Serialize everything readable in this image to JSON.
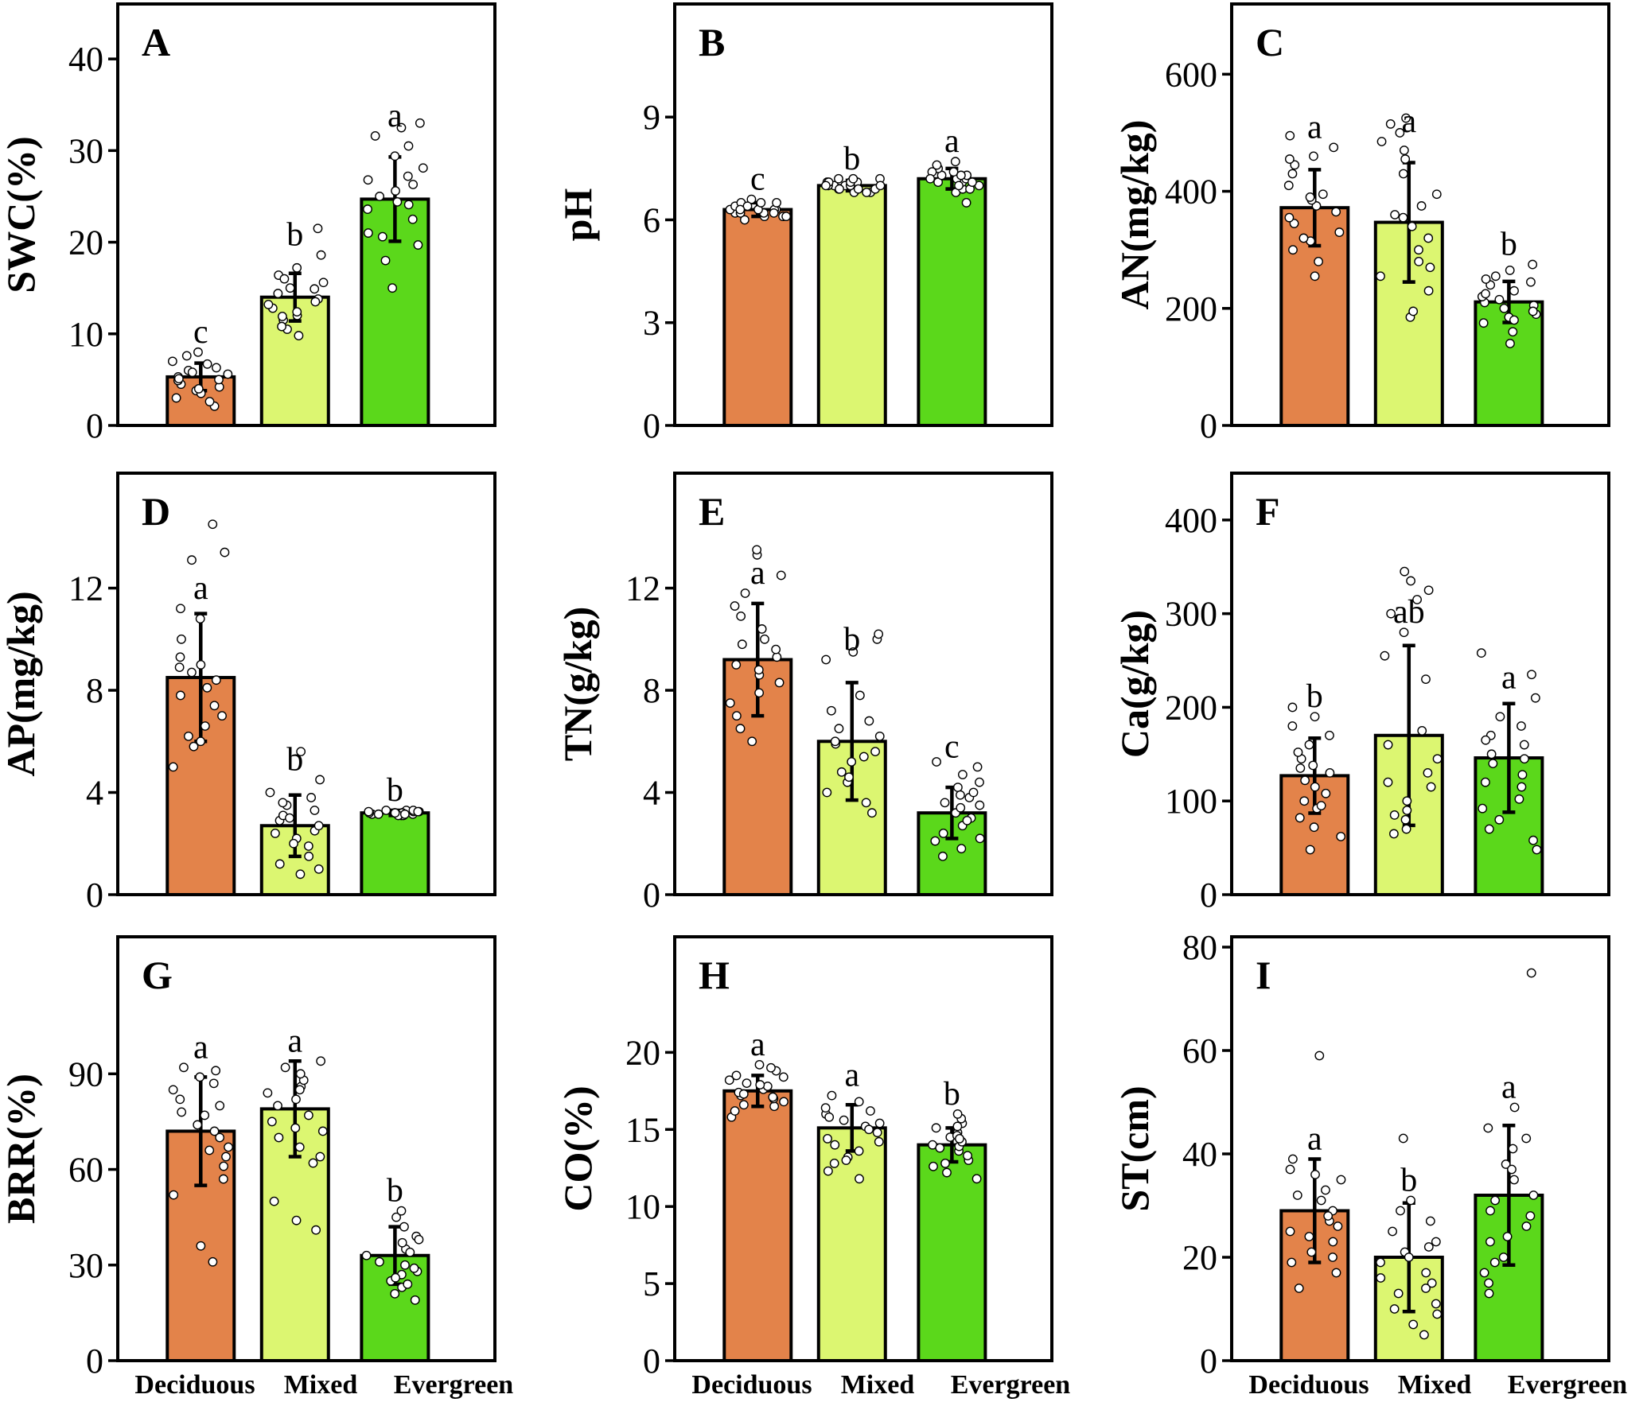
{
  "categories": [
    "Deciduous",
    "Mixed",
    "Evergreen"
  ],
  "colors": {
    "Deciduous": "#e3834a",
    "Mixed": "#dcf671",
    "Evergreen": "#5bd81b",
    "axis": "#000000",
    "point": "#ffffff"
  },
  "chart_data": [
    {
      "id": "A",
      "type": "bar",
      "ylabel": "SWC(%)",
      "ylim": [
        0,
        46
      ],
      "yticks": [
        0,
        10,
        20,
        30,
        40
      ],
      "values": [
        5.3,
        14,
        24.7
      ],
      "errors": [
        1.5,
        2.6,
        4.6
      ],
      "letters": [
        "c",
        "b",
        "a"
      ],
      "points": [
        [
          2.1,
          3.0,
          3.8,
          4.2,
          4.5,
          5.0,
          5.3,
          5.6,
          6.0,
          6.3,
          7.0,
          7.6,
          2.6,
          3.5,
          4.9,
          5.8,
          6.7,
          8.0,
          4.0,
          5.1
        ],
        [
          9.8,
          10.5,
          11.5,
          12.0,
          12.8,
          13.2,
          13.8,
          14.4,
          15.0,
          15.6,
          16.4,
          17.2,
          18.6,
          21.5,
          10.8,
          12.4,
          14.9,
          16.0,
          13.5,
          11.9
        ],
        [
          15.0,
          18.0,
          19.7,
          21.0,
          22.5,
          23.6,
          24.4,
          25.0,
          25.6,
          26.3,
          27.2,
          28.1,
          29.4,
          30.5,
          31.6,
          32.5,
          33.0,
          20.6,
          24.1,
          26.8
        ]
      ]
    },
    {
      "id": "B",
      "type": "bar",
      "ylabel": "pH",
      "ylim": [
        0,
        12.3
      ],
      "yticks": [
        0,
        3,
        6,
        9
      ],
      "values": [
        6.3,
        7.0,
        7.2
      ],
      "errors": [
        0.2,
        0.15,
        0.3
      ],
      "letters": [
        "c",
        "b",
        "a"
      ],
      "points": [
        [
          6.0,
          6.1,
          6.1,
          6.2,
          6.2,
          6.3,
          6.3,
          6.3,
          6.4,
          6.4,
          6.5,
          6.5,
          6.6,
          6.2,
          6.3,
          6.4,
          6.1,
          6.5,
          6.3,
          6.2
        ],
        [
          6.8,
          6.8,
          6.9,
          6.9,
          7.0,
          7.0,
          7.0,
          7.1,
          7.1,
          7.2,
          7.2,
          6.9,
          7.0,
          7.1,
          6.8,
          7.2,
          7.0,
          6.9,
          7.1,
          7.0
        ],
        [
          6.5,
          6.8,
          6.9,
          7.0,
          7.1,
          7.1,
          7.2,
          7.2,
          7.3,
          7.3,
          7.4,
          7.5,
          7.6,
          7.7,
          7.0,
          7.3,
          6.9,
          7.4,
          7.1,
          7.2
        ]
      ]
    },
    {
      "id": "C",
      "type": "bar",
      "ylabel": "AN(mg/kg)",
      "ylim": [
        0,
        720
      ],
      "yticks": [
        0,
        200,
        400,
        600
      ],
      "values": [
        372,
        347,
        211
      ],
      "errors": [
        65,
        102,
        35
      ],
      "letters": [
        "a",
        "a",
        "b"
      ],
      "points": [
        [
          255,
          280,
          300,
          315,
          330,
          345,
          355,
          365,
          375,
          385,
          395,
          410,
          430,
          445,
          455,
          460,
          475,
          495,
          320,
          390
        ],
        [
          185,
          195,
          230,
          255,
          280,
          300,
          320,
          340,
          355,
          375,
          395,
          430,
          455,
          470,
          485,
          500,
          515,
          525,
          270,
          360
        ],
        [
          140,
          160,
          175,
          185,
          190,
          200,
          205,
          210,
          215,
          220,
          230,
          240,
          250,
          255,
          265,
          275,
          180,
          195,
          225,
          245
        ]
      ]
    },
    {
      "id": "D",
      "type": "bar",
      "ylabel": "AP(mg/kg)",
      "ylim": [
        0,
        16.5
      ],
      "yticks": [
        0,
        4,
        8,
        12
      ],
      "values": [
        8.5,
        2.7,
        3.2
      ],
      "errors": [
        2.5,
        1.2,
        0.1
      ],
      "letters": [
        "a",
        "b",
        "b"
      ],
      "points": [
        [
          5.0,
          5.8,
          6.2,
          6.6,
          7.0,
          7.4,
          7.8,
          8.1,
          8.4,
          8.7,
          9.0,
          9.3,
          10.0,
          10.8,
          11.2,
          13.1,
          13.4,
          14.5,
          6.0,
          8.9
        ],
        [
          0.8,
          1.0,
          1.5,
          1.9,
          2.2,
          2.5,
          2.7,
          2.9,
          3.1,
          3.3,
          3.5,
          3.8,
          4.0,
          4.5,
          5.6,
          1.2,
          2.0,
          3.0,
          2.4,
          3.6
        ],
        [
          3.1,
          3.15,
          3.2,
          3.2,
          3.25,
          3.3,
          3.15,
          3.2,
          3.25,
          3.1,
          3.3,
          3.2,
          3.15,
          3.25,
          3.2,
          3.3,
          3.1,
          3.2,
          3.25,
          3.15
        ]
      ]
    },
    {
      "id": "E",
      "type": "bar",
      "ylabel": "TN(g/kg)",
      "ylim": [
        0,
        16.5
      ],
      "yticks": [
        0,
        4,
        8,
        12
      ],
      "values": [
        9.2,
        6.0,
        3.2
      ],
      "errors": [
        2.2,
        2.3,
        1.0
      ],
      "letters": [
        "a",
        "b",
        "c"
      ],
      "points": [
        [
          6.0,
          6.5,
          7.0,
          7.5,
          7.9,
          8.3,
          8.6,
          9.0,
          9.3,
          9.6,
          10.0,
          10.4,
          10.9,
          11.3,
          11.8,
          12.5,
          13.3,
          13.5,
          8.8,
          9.8
        ],
        [
          3.2,
          3.6,
          4.0,
          4.4,
          4.8,
          5.2,
          5.6,
          5.9,
          6.2,
          6.5,
          6.8,
          7.2,
          7.8,
          9.2,
          9.5,
          10.0,
          10.2,
          4.6,
          5.4,
          6.0
        ],
        [
          1.5,
          1.8,
          2.1,
          2.4,
          2.7,
          3.0,
          3.2,
          3.4,
          3.6,
          3.8,
          4.0,
          4.2,
          4.4,
          4.7,
          5.0,
          5.2,
          2.2,
          2.9,
          3.5,
          3.9
        ]
      ]
    },
    {
      "id": "F",
      "type": "bar",
      "ylabel": "Ca(g/kg)",
      "ylim": [
        0,
        450
      ],
      "yticks": [
        0,
        100,
        200,
        300,
        400
      ],
      "values": [
        127,
        170,
        146
      ],
      "errors": [
        40,
        96,
        58
      ],
      "letters": [
        "b",
        "ab",
        "a"
      ],
      "points": [
        [
          48,
          62,
          72,
          82,
          92,
          100,
          108,
          115,
          122,
          130,
          138,
          145,
          152,
          160,
          170,
          180,
          190,
          200,
          95,
          135
        ],
        [
          65,
          70,
          80,
          90,
          100,
          115,
          130,
          145,
          160,
          175,
          230,
          255,
          280,
          300,
          315,
          325,
          335,
          345,
          85,
          120
        ],
        [
          48,
          58,
          70,
          80,
          92,
          102,
          115,
          128,
          140,
          150,
          160,
          170,
          180,
          190,
          210,
          235,
          258,
          120,
          145,
          165
        ]
      ]
    },
    {
      "id": "G",
      "type": "bar",
      "ylabel": "BRR(%)",
      "ylim": [
        0,
        133
      ],
      "yticks": [
        0,
        30,
        60,
        90
      ],
      "values": [
        72,
        79,
        33
      ],
      "errors": [
        17,
        15,
        9
      ],
      "letters": [
        "a",
        "a",
        "b"
      ],
      "points": [
        [
          31,
          36,
          52,
          57,
          61,
          64,
          67,
          70,
          72,
          74,
          77,
          80,
          82,
          85,
          87,
          89,
          91,
          92,
          66,
          78
        ],
        [
          41,
          44,
          50,
          62,
          64,
          67,
          70,
          72,
          75,
          77,
          80,
          82,
          84,
          86,
          88,
          90,
          92,
          94,
          73,
          85
        ],
        [
          19,
          21,
          23,
          25,
          27,
          28,
          30,
          31,
          33,
          35,
          37,
          39,
          42,
          45,
          47,
          24,
          29,
          34,
          38,
          26
        ]
      ]
    },
    {
      "id": "H",
      "type": "bar",
      "ylabel": "CO(%)",
      "ylim": [
        0,
        27.5
      ],
      "yticks": [
        0,
        5,
        10,
        15,
        20
      ],
      "values": [
        17.5,
        15.1,
        14.0
      ],
      "errors": [
        1.0,
        1.5,
        1.1
      ],
      "letters": [
        "a",
        "a",
        "b"
      ],
      "points": [
        [
          15.8,
          16.2,
          16.5,
          16.8,
          17.0,
          17.2,
          17.4,
          17.6,
          17.8,
          18.0,
          18.2,
          18.5,
          18.8,
          19.0,
          19.2,
          16.6,
          17.1,
          17.9,
          18.4,
          17.3
        ],
        [
          11.8,
          12.3,
          12.8,
          13.2,
          13.6,
          14.0,
          14.4,
          14.8,
          15.2,
          15.6,
          16.0,
          16.4,
          16.8,
          17.2,
          13.0,
          15.0,
          15.8,
          14.2,
          16.2,
          15.4
        ],
        [
          11.8,
          12.2,
          12.6,
          13.0,
          13.3,
          13.6,
          13.9,
          14.2,
          14.5,
          14.8,
          15.1,
          15.4,
          15.7,
          16.0,
          12.8,
          14.0,
          14.6,
          13.8,
          15.2,
          14.4
        ]
      ]
    },
    {
      "id": "I",
      "type": "bar",
      "ylabel": "ST(cm)",
      "ylim": [
        0,
        82
      ],
      "yticks": [
        0,
        20,
        40,
        60,
        80
      ],
      "values": [
        29,
        20,
        32
      ],
      "errors": [
        10,
        10.5,
        13.5
      ],
      "letters": [
        "a",
        "b",
        "a"
      ],
      "points": [
        [
          14,
          17,
          19,
          21,
          23,
          25,
          27,
          29,
          31,
          33,
          35,
          37,
          39,
          59,
          20,
          24,
          28,
          32,
          36,
          26
        ],
        [
          5,
          7,
          9,
          11,
          13,
          15,
          17,
          19,
          21,
          23,
          25,
          27,
          29,
          31,
          43,
          10,
          16,
          22,
          14,
          20
        ],
        [
          13,
          15,
          17,
          20,
          23,
          26,
          29,
          32,
          35,
          38,
          41,
          43,
          45,
          49,
          75,
          19,
          24,
          31,
          37,
          28
        ]
      ]
    }
  ]
}
